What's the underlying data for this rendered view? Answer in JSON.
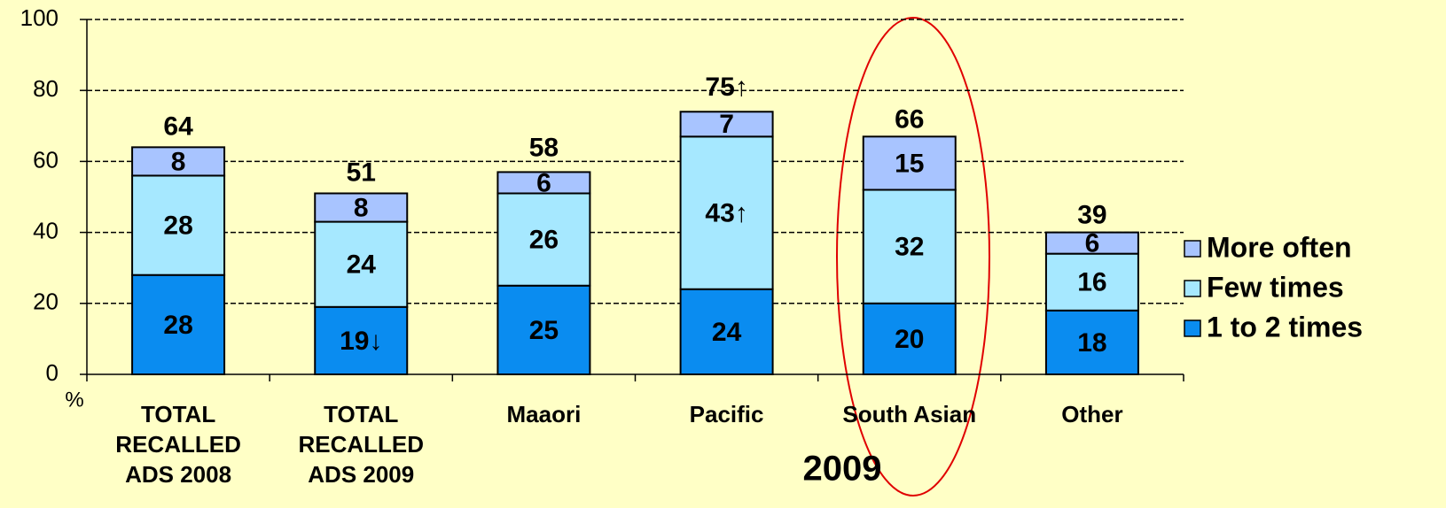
{
  "chart_data": {
    "type": "stacked_bar",
    "y_label": "%",
    "x_label": "2009",
    "categories": [
      "TOTAL RECALLED ADS 2008",
      "TOTAL RECALLED ADS 2009",
      "Maaori",
      "Pacific",
      "South Asian",
      "Other"
    ],
    "series": [
      {
        "name": "1 to 2 times",
        "color": "#0a8cf0",
        "values": [
          28,
          19,
          25,
          24,
          20,
          18
        ],
        "value_labels": [
          "28",
          "19↓",
          "25",
          "24",
          "20",
          "18"
        ]
      },
      {
        "name": "Few times",
        "color": "#a6e8ff",
        "values": [
          28,
          24,
          26,
          43,
          32,
          16
        ],
        "value_labels": [
          "28",
          "24",
          "26",
          "43↑",
          "32",
          "16"
        ]
      },
      {
        "name": "More often",
        "color": "#a8c4ff",
        "values": [
          8,
          8,
          6,
          7,
          15,
          6
        ],
        "value_labels": [
          "8",
          "8",
          "6",
          "7",
          "15",
          "6"
        ]
      }
    ],
    "totals": [
      64,
      51,
      58,
      75,
      66,
      39
    ],
    "total_labels": [
      "64",
      "51",
      "58",
      "75↑",
      "66",
      "39"
    ],
    "ylim": [
      0,
      100
    ],
    "yticks": [
      0,
      20,
      40,
      60,
      80,
      100
    ],
    "grid": true,
    "legend": "right"
  }
}
